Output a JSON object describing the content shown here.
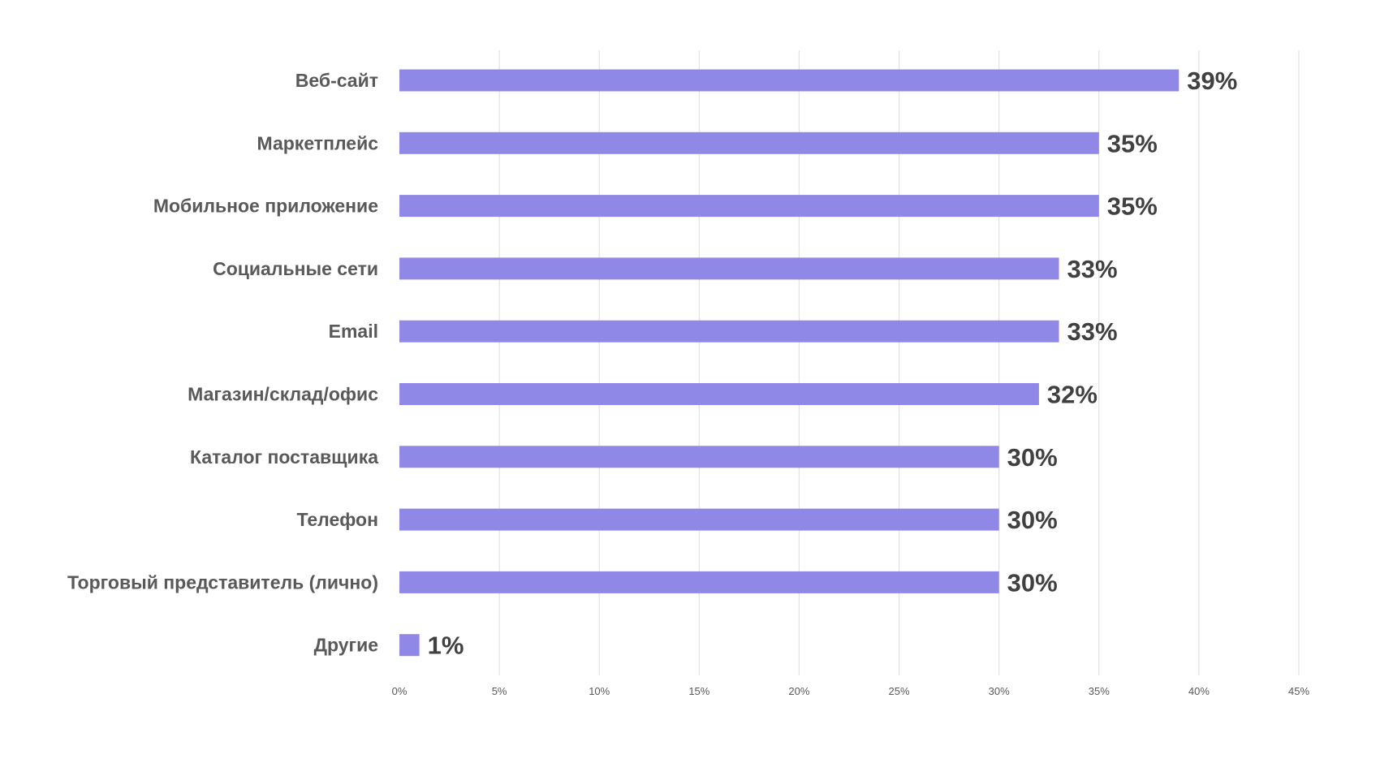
{
  "chart_data": {
    "type": "bar",
    "orientation": "horizontal",
    "categories": [
      "Веб-сайт",
      "Маркетплейс",
      "Мобильное приложение",
      "Социальные сети",
      "Email",
      "Магазин/склад/офис",
      "Каталог поставщика",
      "Телефон",
      "Торговый представитель (лично)",
      "Другие"
    ],
    "values": [
      39,
      35,
      35,
      33,
      33,
      32,
      30,
      30,
      30,
      1
    ],
    "value_labels": [
      "39%",
      "35%",
      "35%",
      "33%",
      "33%",
      "32%",
      "30%",
      "30%",
      "30%",
      "1%"
    ],
    "xlim": [
      0,
      45
    ],
    "x_ticks": [
      0,
      5,
      10,
      15,
      20,
      25,
      30,
      35,
      40,
      45
    ],
    "x_tick_labels": [
      "0%",
      "5%",
      "10%",
      "15%",
      "20%",
      "25%",
      "30%",
      "35%",
      "40%",
      "45%"
    ],
    "grid": "vertical",
    "legend": "none",
    "bar_color": "#9088e6",
    "title": "",
    "xlabel": "",
    "ylabel": ""
  }
}
